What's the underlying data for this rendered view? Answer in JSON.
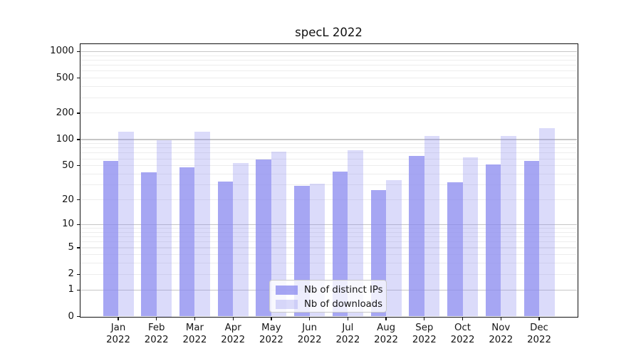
{
  "title": "specL 2022",
  "chart_data": {
    "type": "bar",
    "categories": [
      "Jan 2022",
      "Feb 2022",
      "Mar 2022",
      "Apr 2022",
      "May 2022",
      "Jun 2022",
      "Jul 2022",
      "Aug 2022",
      "Sep 2022",
      "Oct 2022",
      "Nov 2022",
      "Dec 2022"
    ],
    "series": [
      {
        "name": "Nb of distinct IPs",
        "color": "rgba(136,136,239,0.75)",
        "values": [
          57,
          42,
          48,
          33,
          59,
          29,
          43,
          26,
          65,
          32,
          52,
          57
        ]
      },
      {
        "name": "Nb of downloads",
        "color": "rgba(136,136,239,0.30)",
        "values": [
          122,
          99,
          123,
          54,
          73,
          31,
          76,
          34,
          110,
          62,
          109,
          134
        ]
      }
    ],
    "yscale": "log10(value+1)",
    "yticks": [
      0,
      1,
      2,
      5,
      10,
      20,
      50,
      100,
      200,
      500,
      1000
    ],
    "minor_grid_values": [
      2,
      3,
      4,
      5,
      6,
      7,
      8,
      9,
      20,
      30,
      40,
      50,
      60,
      70,
      80,
      90,
      200,
      300,
      400,
      500,
      600,
      700,
      800,
      900
    ],
    "major_grid_values": [
      1,
      10,
      100,
      1000
    ],
    "ylim": [
      0,
      1230
    ],
    "xlabel": "",
    "ylabel": "",
    "legend": {
      "labels": [
        "Nb of distinct IPs",
        "Nb of downloads"
      ],
      "position": "lower center"
    },
    "grid": "both"
  },
  "colors": {
    "major_grid": "#c6c6c6",
    "minor_grid": "#ededed",
    "axis": "#111111",
    "text": "#151515"
  }
}
